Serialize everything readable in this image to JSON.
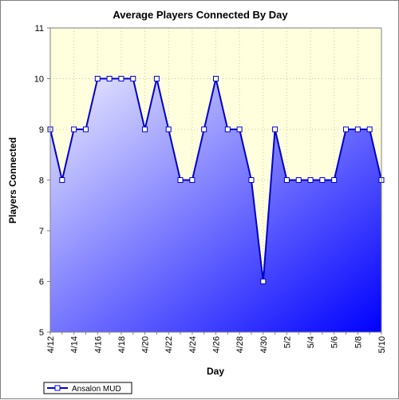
{
  "chart_data": {
    "type": "area",
    "title": "Average Players Connected By Day",
    "xlabel": "Day",
    "ylabel": "Players Connected",
    "ylim": [
      5,
      11
    ],
    "yticks": [
      5,
      6,
      7,
      8,
      9,
      10,
      11
    ],
    "grid": true,
    "legend_position": "bottom-left",
    "x": [
      "4/12",
      "4/13",
      "4/14",
      "4/15",
      "4/16",
      "4/17",
      "4/18",
      "4/19",
      "4/20",
      "4/21",
      "4/22",
      "4/23",
      "4/24",
      "4/25",
      "4/26",
      "4/27",
      "4/28",
      "4/29",
      "4/30",
      "5/1",
      "5/2",
      "5/3",
      "5/4",
      "5/5",
      "5/6",
      "5/7",
      "5/8",
      "5/9",
      "5/10"
    ],
    "xtick_labels": [
      "4/12",
      "4/14",
      "4/16",
      "4/18",
      "4/20",
      "4/22",
      "4/24",
      "4/26",
      "4/28",
      "4/30",
      "5/2",
      "5/4",
      "5/6",
      "5/8",
      "5/10"
    ],
    "series": [
      {
        "name": "Ansalon MUD",
        "values": [
          9,
          8,
          9,
          9,
          10,
          10,
          10,
          10,
          9,
          10,
          9,
          8,
          8,
          9,
          10,
          9,
          9,
          8,
          6,
          9,
          8,
          8,
          8,
          8,
          8,
          9,
          9,
          9,
          8
        ]
      }
    ],
    "colors": {
      "plot_background": "#ffffdd",
      "line": "#0000cc",
      "fill_light": "#ececff",
      "fill_dark": "#0000ff",
      "marker_fill": "#ffffff"
    }
  }
}
